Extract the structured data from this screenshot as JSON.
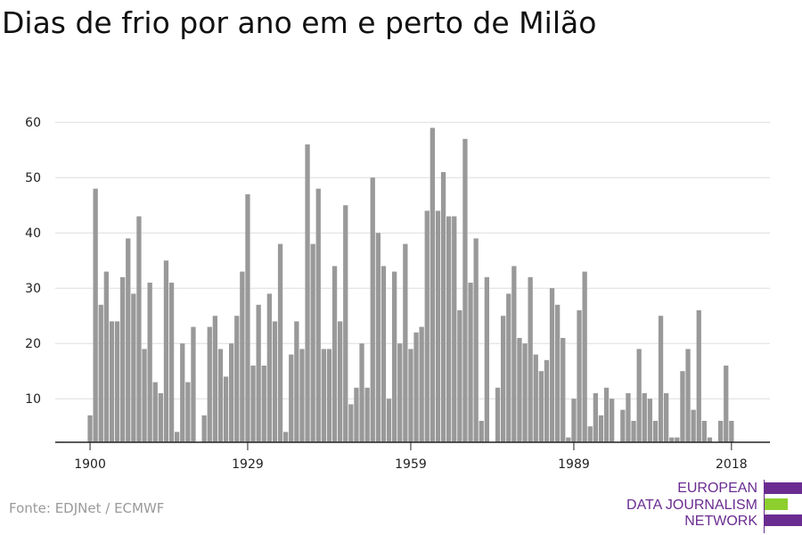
{
  "title": "Dias de frio por ano em e perto de Milão",
  "source": "Fonte: EDJNet / ECMWF",
  "logo": {
    "lines": [
      "EUROPEAN",
      "DATA JOURNALISM",
      "NETWORK"
    ],
    "colors": {
      "purple": "#6a2c91",
      "green": "#8ccf2e"
    }
  },
  "colors": {
    "bar": "#999999",
    "grid": "#dddddd",
    "axis": "#222222",
    "text": "#222222"
  },
  "chart_data": {
    "type": "bar",
    "title": "Dias de frio por ano em e perto de Milão",
    "xlabel": "",
    "ylabel": "",
    "x_tick_labels": [
      "1900",
      "1929",
      "1959",
      "1989",
      "2018"
    ],
    "y_ticks": [
      10,
      20,
      30,
      40,
      50,
      60
    ],
    "ylim": [
      1,
      61
    ],
    "xlim": [
      1900,
      2022
    ],
    "grid": true,
    "categories": [
      1900,
      1901,
      1902,
      1903,
      1904,
      1905,
      1906,
      1907,
      1908,
      1909,
      1910,
      1911,
      1912,
      1913,
      1914,
      1915,
      1916,
      1917,
      1918,
      1919,
      1920,
      1921,
      1922,
      1923,
      1924,
      1925,
      1926,
      1927,
      1928,
      1929,
      1930,
      1931,
      1932,
      1933,
      1934,
      1935,
      1936,
      1937,
      1938,
      1939,
      1940,
      1941,
      1942,
      1943,
      1944,
      1945,
      1946,
      1947,
      1948,
      1949,
      1950,
      1951,
      1952,
      1953,
      1954,
      1955,
      1956,
      1957,
      1958,
      1959,
      1960,
      1961,
      1962,
      1963,
      1964,
      1965,
      1966,
      1967,
      1968,
      1969,
      1970,
      1971,
      1972,
      1973,
      1974,
      1975,
      1976,
      1977,
      1978,
      1979,
      1980,
      1981,
      1982,
      1983,
      1984,
      1985,
      1986,
      1987,
      1988,
      1989,
      1990,
      1991,
      1992,
      1993,
      1994,
      1995,
      1996,
      1997,
      1998,
      1999,
      2000,
      2001,
      2002,
      2003,
      2004,
      2005,
      2006,
      2007,
      2008,
      2009,
      2010,
      2011,
      2012,
      2013,
      2014,
      2015,
      2016,
      2017,
      2018,
      2019,
      2020
    ],
    "values": [
      7,
      48,
      27,
      33,
      24,
      24,
      32,
      39,
      29,
      43,
      19,
      31,
      13,
      11,
      35,
      31,
      4,
      20,
      13,
      23,
      0,
      7,
      23,
      25,
      19,
      14,
      20,
      25,
      33,
      47,
      16,
      27,
      16,
      29,
      24,
      38,
      4,
      18,
      24,
      19,
      56,
      38,
      48,
      19,
      19,
      34,
      24,
      45,
      9,
      12,
      20,
      12,
      50,
      40,
      34,
      10,
      33,
      20,
      38,
      19,
      22,
      23,
      44,
      59,
      44,
      51,
      43,
      43,
      26,
      57,
      31,
      39,
      6,
      32,
      2,
      12,
      25,
      29,
      34,
      21,
      20,
      32,
      18,
      15,
      17,
      30,
      27,
      21,
      3,
      10,
      26,
      33,
      5,
      11,
      7,
      12,
      10,
      2,
      8,
      11,
      6,
      19,
      11,
      10,
      6,
      25,
      11,
      3,
      3,
      15,
      19,
      8,
      26,
      6,
      3,
      0,
      6,
      16,
      6,
      0,
      0
    ]
  }
}
